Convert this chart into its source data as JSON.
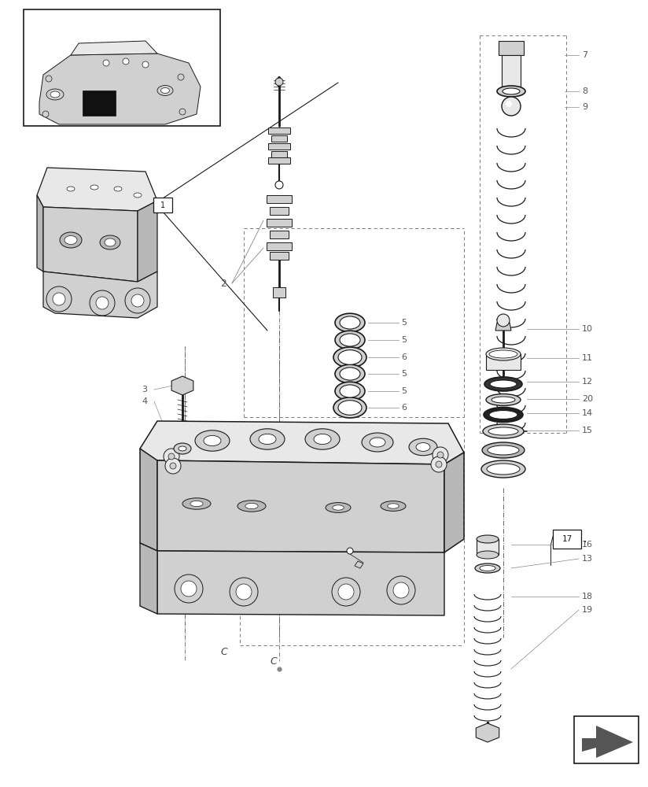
{
  "bg": "#ffffff",
  "lc": "#1a1a1a",
  "lc_thin": "#333333",
  "lc_gray": "#888888",
  "lc_dash": "#666666",
  "fill_light": "#e8e8e8",
  "fill_mid": "#d0d0d0",
  "fill_dark": "#b8b8b8",
  "fill_black": "#111111",
  "label_color": "#555555",
  "fig_w": 8.24,
  "fig_h": 10.0
}
